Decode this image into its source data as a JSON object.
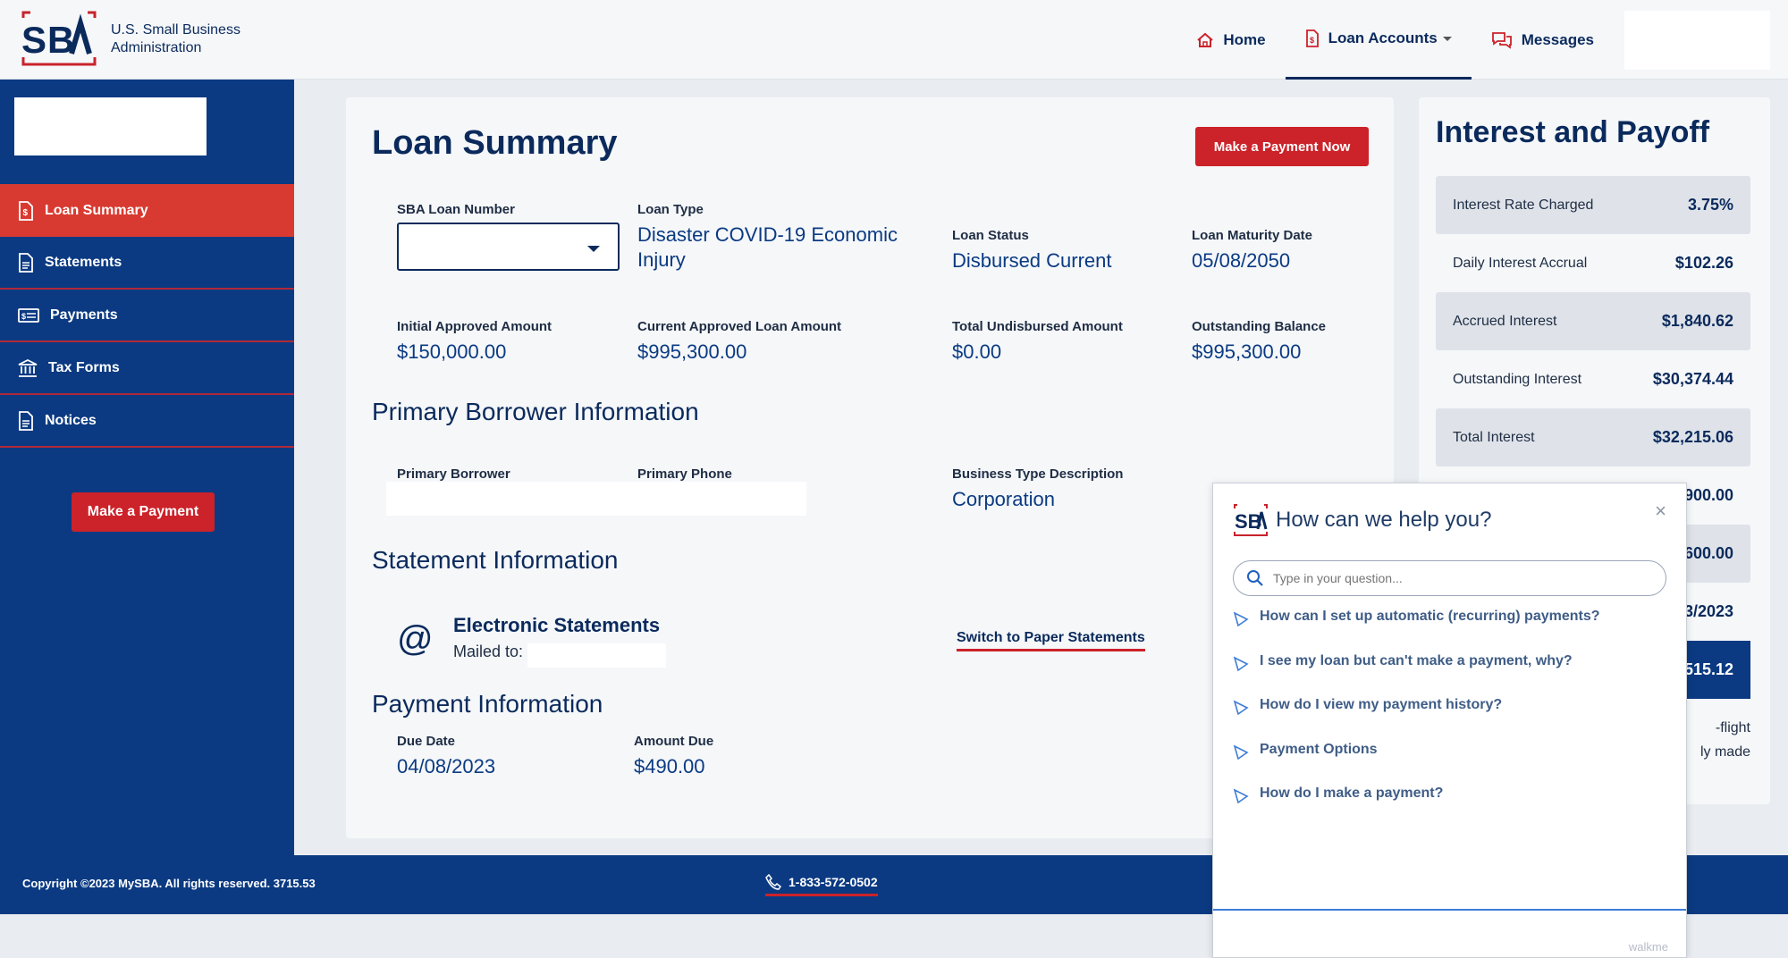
{
  "header": {
    "brand_line1": "U.S. Small Business",
    "brand_line2": "Administration",
    "nav": [
      {
        "label": "Home"
      },
      {
        "label": "Loan Accounts"
      },
      {
        "label": "Messages"
      }
    ]
  },
  "sidebar": {
    "items": [
      {
        "label": "Loan Summary"
      },
      {
        "label": "Statements"
      },
      {
        "label": "Payments"
      },
      {
        "label": "Tax Forms"
      },
      {
        "label": "Notices"
      }
    ],
    "button": "Make a Payment"
  },
  "main": {
    "title": "Loan Summary",
    "pay_now": "Make a Payment Now",
    "loan_number_label": "SBA Loan Number",
    "loan_type_label": "Loan Type",
    "loan_type": "Disaster COVID-19 Economic Injury",
    "loan_status_label": "Loan Status",
    "loan_status": "Disbursed Current",
    "maturity_label": "Loan Maturity Date",
    "maturity": "05/08/2050",
    "initial_label": "Initial Approved Amount",
    "initial": "$150,000.00",
    "current_label": "Current Approved Loan Amount",
    "current": "$995,300.00",
    "undisbursed_label": "Total Undisbursed Amount",
    "undisbursed": "$0.00",
    "outstanding_label": "Outstanding Balance",
    "outstanding": "$995,300.00",
    "borrower_section": "Primary Borrower Information",
    "borrower_label": "Primary Borrower",
    "phone_label": "Primary Phone",
    "business_label": "Business Type Description",
    "business": "Corporation",
    "statement_section": "Statement Information",
    "es_title": "Electronic Statements",
    "es_mailed": "Mailed to:",
    "switch_link": "Switch to Paper Statements",
    "payment_section": "Payment Information",
    "due_label": "Due Date",
    "due": "04/08/2023",
    "amount_label": "Amount Due",
    "amount": "$490.00"
  },
  "interest": {
    "title": "Interest and Payoff",
    "rows": [
      {
        "label": "Interest Rate Charged",
        "value": "3.75%"
      },
      {
        "label": "Daily Interest Accrual",
        "value": "$102.26"
      },
      {
        "label": "Accrued Interest",
        "value": "$1,840.62"
      },
      {
        "label": "Outstanding Interest",
        "value": "$30,374.44"
      },
      {
        "label": "Total Interest",
        "value": "$32,215.06"
      },
      {
        "label": "",
        "value": "900.00"
      },
      {
        "label": "",
        "value": "600.00"
      },
      {
        "label": "",
        "value": "3/2023"
      },
      {
        "label": "",
        "value": "515.12"
      }
    ],
    "note1": "-flight",
    "note2": "ly made"
  },
  "footer": {
    "copyright": "Copyright ©2023 MySBA. All rights reserved. 3715.53",
    "phone": "1-833-572-0502"
  },
  "help": {
    "title": "How can we help you?",
    "close": "×",
    "search_placeholder": "Type in your question...",
    "items": [
      {
        "label": "How can I set up automatic (recurring) payments?"
      },
      {
        "label": "I see my loan but can't make a payment, why?"
      },
      {
        "label": "How do I view my payment history?"
      },
      {
        "label": "Payment Options"
      },
      {
        "label": "How do I make a payment?"
      }
    ],
    "brand": "walkme"
  },
  "colors": {
    "navy": "#0b2a5c",
    "sidebar_blue": "#0b3a82",
    "accent_red": "#cc2229"
  }
}
